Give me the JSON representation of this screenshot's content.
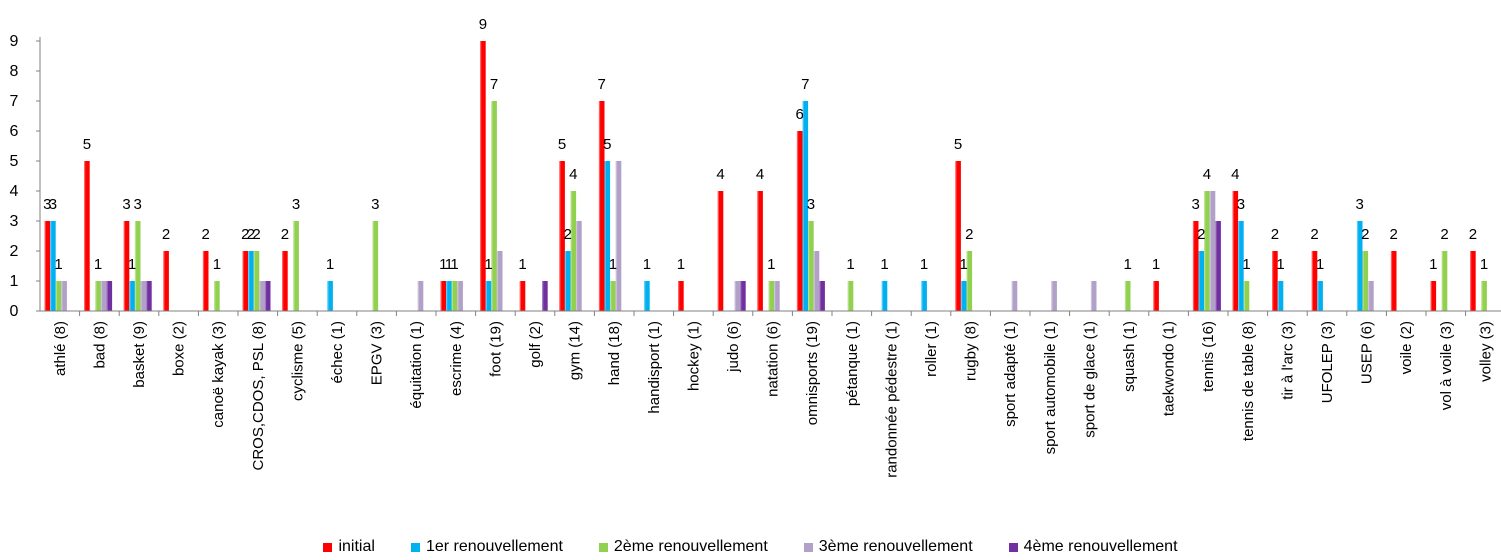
{
  "chart_data": {
    "type": "bar",
    "categories": [
      "athlé (8)",
      "bad (8)",
      "basket (9)",
      "boxe (2)",
      "canoë kayak (3)",
      "CROS,CDOS, PSL (8)",
      "cyclisme (5)",
      "échec (1)",
      "EPGV (3)",
      "équitation (1)",
      "escrime (4)",
      "foot (19)",
      "golf (2)",
      "gym (14)",
      "hand (18)",
      "handisport (1)",
      "hockey (1)",
      "judo (6)",
      "natation (6)",
      "omnisports (19)",
      "pétanque (1)",
      "randonnée pédestre (1)",
      "roller (1)",
      "rugby (8)",
      "sport adapté (1)",
      "sport automobile (1)",
      "sport de glace (1)",
      "squash (1)",
      "taekwondo (1)",
      "tennis (16)",
      "tennis de table (8)",
      "tir à l'arc (3)",
      "UFOLEP (3)",
      "USEP (6)",
      "voile (2)",
      "vol à voile (3)",
      "volley (3)"
    ],
    "series": [
      {
        "name": "initial",
        "color": "#ff0000",
        "values": [
          3,
          5,
          3,
          2,
          2,
          2,
          2,
          0,
          0,
          0,
          1,
          9,
          1,
          5,
          7,
          0,
          1,
          4,
          4,
          6,
          0,
          0,
          0,
          5,
          0,
          0,
          0,
          0,
          1,
          3,
          4,
          2,
          2,
          0,
          2,
          1,
          2
        ]
      },
      {
        "name": "1er renouvellement",
        "color": "#00b0f0",
        "values": [
          3,
          0,
          1,
          0,
          0,
          2,
          0,
          1,
          0,
          0,
          1,
          1,
          0,
          2,
          5,
          1,
          0,
          0,
          0,
          7,
          0,
          1,
          1,
          1,
          0,
          0,
          0,
          0,
          0,
          2,
          3,
          1,
          1,
          3,
          0,
          0,
          0
        ]
      },
      {
        "name": "2ème renouvellement",
        "color": "#92d050",
        "values": [
          1,
          1,
          3,
          0,
          1,
          2,
          3,
          0,
          3,
          0,
          1,
          7,
          0,
          4,
          1,
          0,
          0,
          0,
          1,
          3,
          1,
          0,
          0,
          2,
          0,
          0,
          0,
          1,
          0,
          4,
          1,
          0,
          0,
          2,
          0,
          2,
          1
        ]
      },
      {
        "name": "3ème renouvellement",
        "color": "#b1a0c7",
        "values": [
          1,
          1,
          1,
          0,
          0,
          1,
          0,
          0,
          0,
          1,
          1,
          2,
          0,
          3,
          5,
          0,
          0,
          1,
          1,
          2,
          0,
          0,
          0,
          0,
          1,
          1,
          1,
          0,
          0,
          4,
          0,
          0,
          0,
          1,
          0,
          0,
          0
        ]
      },
      {
        "name": "4ème renouvellement",
        "color": "#7030a0",
        "values": [
          0,
          1,
          1,
          0,
          0,
          1,
          0,
          0,
          0,
          0,
          0,
          0,
          1,
          0,
          0,
          0,
          0,
          1,
          0,
          1,
          0,
          0,
          0,
          0,
          0,
          0,
          0,
          0,
          0,
          3,
          0,
          0,
          0,
          0,
          0,
          0,
          0
        ]
      }
    ],
    "data_label_series": [
      "initial",
      "1er renouvellement",
      "2ème renouvellement"
    ],
    "y_ticks": [
      "0",
      "1",
      "2",
      "3",
      "4",
      "5",
      "6",
      "7",
      "8",
      "9"
    ],
    "ylim": [
      0,
      9
    ],
    "grid": false,
    "legend_position": "bottom"
  }
}
